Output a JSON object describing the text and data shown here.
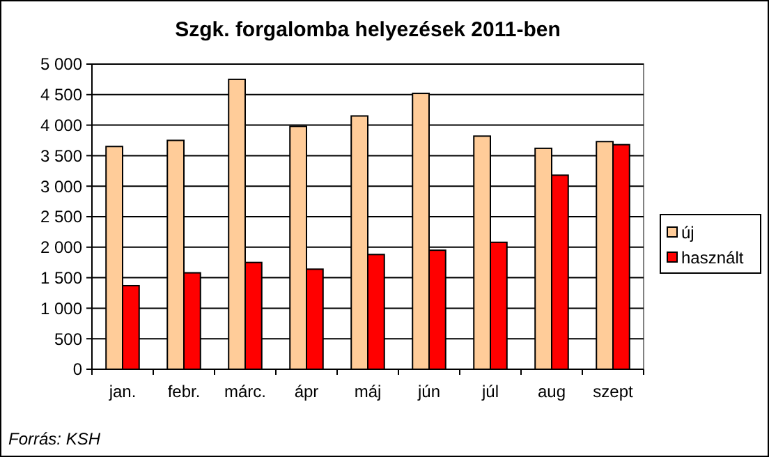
{
  "chart_data": {
    "type": "bar",
    "title": "Szgk. forgalomba helyezések 2011-ben",
    "categories": [
      "jan.",
      "febr.",
      "márc.",
      "ápr",
      "máj",
      "jún",
      "júl",
      "aug",
      "szept"
    ],
    "series": [
      {
        "name": "új",
        "color": "#ffcc99",
        "values": [
          3650,
          3750,
          4750,
          3980,
          4150,
          4520,
          3820,
          3620,
          3730
        ]
      },
      {
        "name": "használt",
        "color": "#ff0000",
        "values": [
          1370,
          1580,
          1750,
          1640,
          1880,
          1950,
          2080,
          3180,
          3680
        ]
      }
    ],
    "ylim": [
      0,
      5000
    ],
    "yticks": [
      0,
      500,
      {
        "value": 1000,
        "label": "1 000"
      },
      {
        "value": 1500,
        "label": "1 500"
      },
      {
        "value": 2000,
        "label": "2 000"
      },
      {
        "value": 2500,
        "label": "2 500"
      },
      {
        "value": 3000,
        "label": "3 000"
      },
      {
        "value": 3500,
        "label": "3 500"
      },
      {
        "value": 4000,
        "label": "4 000"
      },
      {
        "value": 4500,
        "label": "4 500"
      },
      {
        "value": 5000,
        "label": "5 000"
      }
    ],
    "grid": "y",
    "legend": "right",
    "annotations": [
      "Forrás: KSH"
    ]
  }
}
